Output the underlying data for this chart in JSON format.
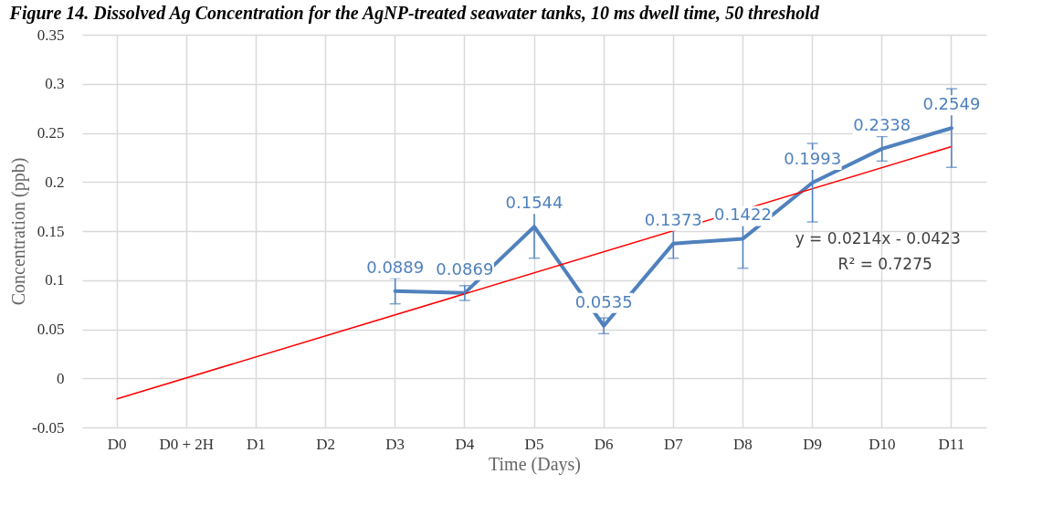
{
  "chart_data": {
    "type": "line",
    "title": "Figure 14. Dissolved Ag Concentration for the AgNP-treated seawater tanks, 10 ms dwell time, 50 threshold",
    "xlabel": "Time (Days)",
    "ylabel": "Concentration (ppb)",
    "categories": [
      "D0",
      "D0 + 2H",
      "D1",
      "D2",
      "D3",
      "D4",
      "D5",
      "D6",
      "D7",
      "D8",
      "D9",
      "D10",
      "D11"
    ],
    "series": [
      {
        "color": "#4f81bd",
        "values": [
          null,
          null,
          null,
          null,
          0.0889,
          0.0869,
          0.1544,
          0.0535,
          0.1373,
          0.1422,
          0.1993,
          0.2338,
          0.2549
        ],
        "value_labels": [
          null,
          null,
          null,
          null,
          "0.0889",
          "0.0869",
          "0.1544",
          "0.0535",
          "0.1373",
          "0.1422",
          "0.1993",
          "0.2338",
          "0.2549"
        ],
        "errors": [
          null,
          null,
          null,
          null,
          0.013,
          0.0075,
          0.032,
          0.008,
          0.015,
          0.03,
          0.04,
          0.0125,
          0.04
        ]
      },
      {
        "color": "#ff0000",
        "x": [
          "D0",
          "D11"
        ],
        "values": [
          -0.021,
          0.236
        ]
      }
    ],
    "ylim": [
      -0.05,
      0.35
    ],
    "yticks": [
      -0.05,
      0,
      0.05,
      0.1,
      0.15,
      0.2,
      0.25,
      0.3,
      0.35
    ],
    "grid": true,
    "legend": false,
    "annotations": [
      "y = 0.0214x - 0.0423",
      "R² = 0.7275"
    ]
  }
}
